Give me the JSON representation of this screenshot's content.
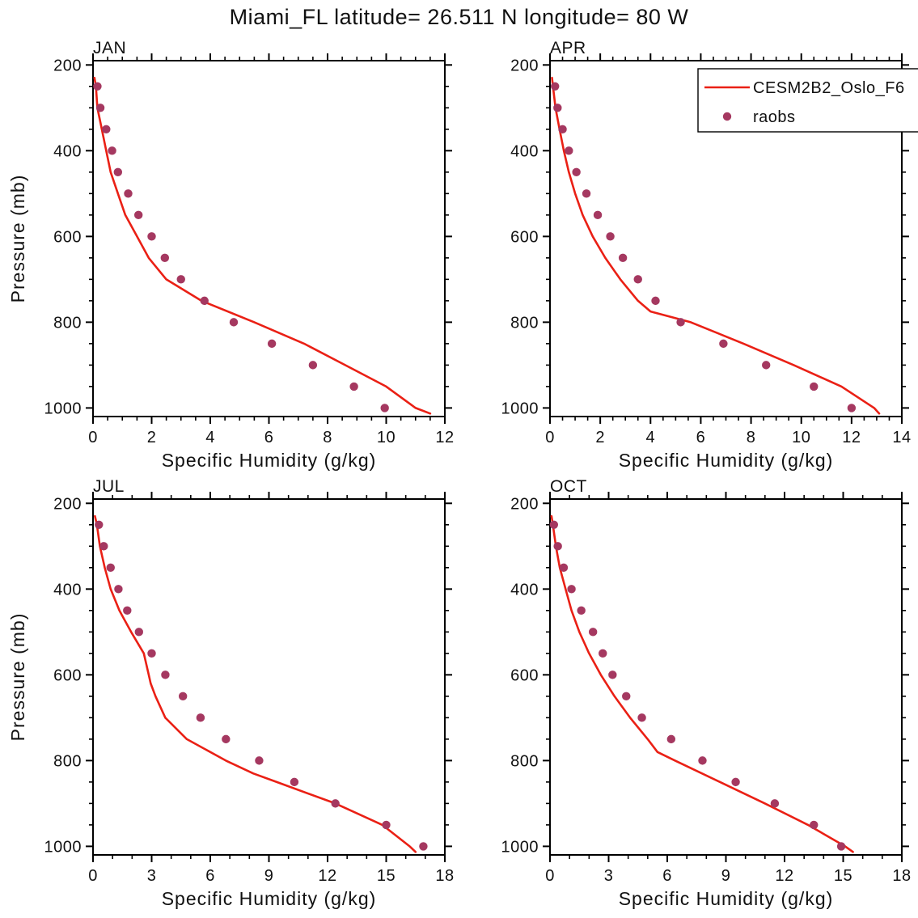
{
  "figure": {
    "title": "Miami_FL  latitude= 26.511 N longitude= 80 W"
  },
  "colors": {
    "model_line": "#ea2015",
    "raobs_marker": "#a53860",
    "axis": "#000000"
  },
  "legend": {
    "line_label": "CESM2B2_Oslo_F6",
    "marker_label": "raobs"
  },
  "chart_data": [
    {
      "type": "line",
      "panel_label": "JAN",
      "xlabel": "Specific Humidity (g/kg)",
      "ylabel": "Pressure (mb)",
      "xlim": [
        0,
        12
      ],
      "x_major": 2,
      "x_minor": 0.5,
      "ylim": [
        190,
        1020
      ],
      "y_major": 200,
      "y_minor": 50,
      "y_ticks_labeled": [
        200,
        400,
        600,
        800,
        1000
      ],
      "y_axis_direction": "increasing-downward",
      "grid": false,
      "show_ylabel": true,
      "legend": null,
      "series": [
        {
          "name": "CESM2B2_Oslo_F6",
          "type": "line",
          "color_key": "model_line",
          "pressure": [
            230,
            250,
            300,
            350,
            400,
            450,
            500,
            550,
            600,
            650,
            700,
            750,
            800,
            850,
            900,
            950,
            1000,
            1013
          ],
          "q": [
            0.05,
            0.1,
            0.15,
            0.3,
            0.45,
            0.6,
            0.85,
            1.1,
            1.5,
            1.9,
            2.5,
            3.7,
            5.5,
            7.2,
            8.6,
            10.0,
            11.0,
            11.5
          ]
        },
        {
          "name": "raobs",
          "type": "scatter",
          "color_key": "raobs_marker",
          "pressure": [
            250,
            300,
            350,
            400,
            450,
            500,
            550,
            600,
            650,
            700,
            750,
            800,
            850,
            900,
            950,
            1000
          ],
          "q": [
            0.15,
            0.25,
            0.45,
            0.65,
            0.85,
            1.2,
            1.55,
            2.0,
            2.45,
            3.0,
            3.8,
            4.8,
            6.1,
            7.5,
            8.9,
            9.95
          ]
        }
      ]
    },
    {
      "type": "line",
      "panel_label": "APR",
      "xlabel": "Specific Humidity (g/kg)",
      "ylabel": "Pressure (mb)",
      "xlim": [
        0,
        14
      ],
      "x_major": 2,
      "x_minor": 0.5,
      "ylim": [
        190,
        1020
      ],
      "y_major": 200,
      "y_minor": 50,
      "y_ticks_labeled": [
        200,
        400,
        600,
        800,
        1000
      ],
      "y_axis_direction": "increasing-downward",
      "grid": false,
      "show_ylabel": false,
      "legend": {
        "position": "top-right",
        "clipped_at_right_edge": true,
        "entries": [
          {
            "type": "line",
            "label": "CESM2B2_Oslo_F6"
          },
          {
            "type": "marker",
            "label": "raobs"
          }
        ]
      },
      "series": [
        {
          "name": "CESM2B2_Oslo_F6",
          "type": "line",
          "color_key": "model_line",
          "pressure": [
            230,
            250,
            300,
            350,
            400,
            450,
            500,
            550,
            600,
            650,
            700,
            750,
            775,
            800,
            850,
            900,
            950,
            1000,
            1013
          ],
          "q": [
            0.08,
            0.12,
            0.22,
            0.38,
            0.55,
            0.75,
            1.0,
            1.3,
            1.7,
            2.2,
            2.8,
            3.5,
            4.0,
            5.6,
            7.7,
            9.7,
            11.6,
            12.9,
            13.1
          ]
        },
        {
          "name": "raobs",
          "type": "scatter",
          "color_key": "raobs_marker",
          "pressure": [
            250,
            300,
            350,
            400,
            450,
            500,
            550,
            600,
            650,
            700,
            750,
            800,
            850,
            900,
            950,
            1000
          ],
          "q": [
            0.2,
            0.3,
            0.5,
            0.75,
            1.05,
            1.45,
            1.9,
            2.4,
            2.9,
            3.5,
            4.2,
            5.2,
            6.9,
            8.6,
            10.5,
            12.0
          ]
        }
      ]
    },
    {
      "type": "line",
      "panel_label": "JUL",
      "xlabel": "Specific Humidity (g/kg)",
      "ylabel": "Pressure (mb)",
      "xlim": [
        0,
        18
      ],
      "x_major": 3,
      "x_minor": 1,
      "ylim": [
        190,
        1020
      ],
      "y_major": 200,
      "y_minor": 50,
      "y_ticks_labeled": [
        200,
        400,
        600,
        800,
        1000
      ],
      "y_axis_direction": "increasing-downward",
      "grid": false,
      "show_ylabel": true,
      "legend": null,
      "series": [
        {
          "name": "CESM2B2_Oslo_F6",
          "type": "line",
          "color_key": "model_line",
          "pressure": [
            230,
            250,
            300,
            350,
            400,
            450,
            500,
            550,
            600,
            620,
            650,
            700,
            750,
            800,
            830,
            850,
            900,
            950,
            1000,
            1013
          ],
          "q": [
            0.1,
            0.2,
            0.35,
            0.6,
            0.9,
            1.35,
            1.95,
            2.6,
            2.85,
            2.95,
            3.2,
            3.7,
            4.8,
            6.8,
            8.2,
            9.4,
            12.4,
            14.8,
            16.2,
            16.5
          ]
        },
        {
          "name": "raobs",
          "type": "scatter",
          "color_key": "raobs_marker",
          "pressure": [
            250,
            300,
            350,
            400,
            450,
            500,
            550,
            600,
            650,
            700,
            750,
            800,
            850,
            900,
            950,
            1000
          ],
          "q": [
            0.3,
            0.55,
            0.9,
            1.3,
            1.75,
            2.35,
            3.0,
            3.7,
            4.6,
            5.5,
            6.8,
            8.5,
            10.3,
            12.4,
            15.0,
            16.9
          ]
        }
      ]
    },
    {
      "type": "line",
      "panel_label": "OCT",
      "xlabel": "Specific Humidity (g/kg)",
      "ylabel": "Pressure (mb)",
      "xlim": [
        0,
        18
      ],
      "x_major": 3,
      "x_minor": 1,
      "ylim": [
        190,
        1020
      ],
      "y_major": 200,
      "y_minor": 50,
      "y_ticks_labeled": [
        200,
        400,
        600,
        800,
        1000
      ],
      "y_axis_direction": "increasing-downward",
      "grid": false,
      "show_ylabel": false,
      "legend": null,
      "series": [
        {
          "name": "CESM2B2_Oslo_F6",
          "type": "line",
          "color_key": "model_line",
          "pressure": [
            230,
            250,
            300,
            350,
            400,
            450,
            500,
            520,
            550,
            600,
            650,
            700,
            750,
            780,
            800,
            850,
            900,
            950,
            1000,
            1013
          ],
          "q": [
            0.08,
            0.15,
            0.3,
            0.5,
            0.8,
            1.1,
            1.5,
            1.7,
            2.0,
            2.6,
            3.3,
            4.1,
            5.0,
            5.5,
            6.4,
            8.7,
            11.0,
            13.2,
            15.1,
            15.5
          ]
        },
        {
          "name": "raobs",
          "type": "scatter",
          "color_key": "raobs_marker",
          "pressure": [
            250,
            300,
            350,
            400,
            450,
            500,
            550,
            600,
            650,
            700,
            750,
            800,
            850,
            900,
            950,
            1000
          ],
          "q": [
            0.2,
            0.4,
            0.7,
            1.1,
            1.6,
            2.2,
            2.7,
            3.2,
            3.9,
            4.7,
            6.2,
            7.8,
            9.5,
            11.5,
            13.5,
            14.9
          ]
        }
      ]
    }
  ]
}
